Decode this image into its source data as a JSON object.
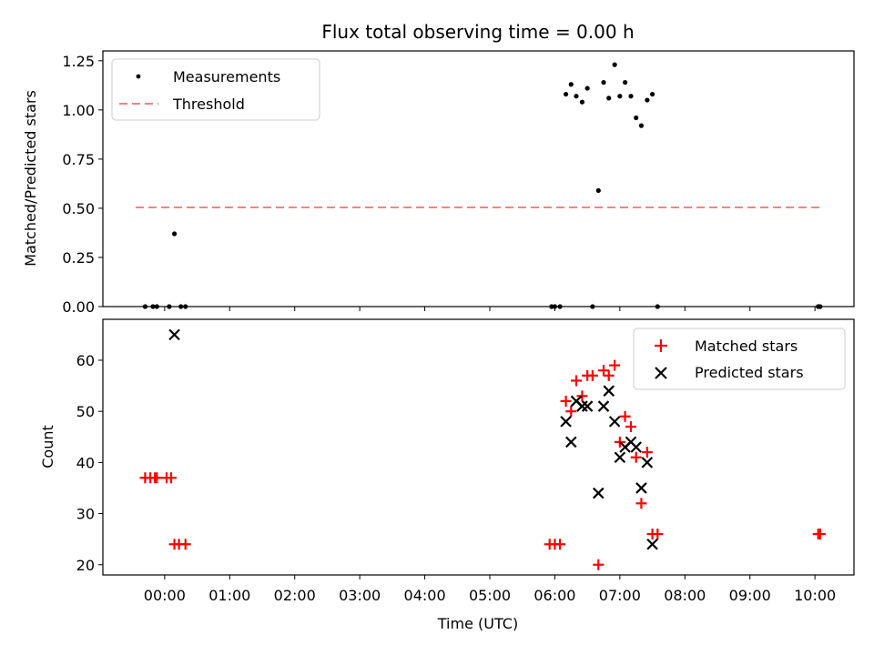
{
  "chart_data": [
    {
      "type": "scatter",
      "title": "Flux total observing time = 0.00 h",
      "xlabel": "",
      "ylabel": "Matched/Predicted stars",
      "xlim": [
        -0.95,
        10.6
      ],
      "ylim": [
        0.0,
        1.3
      ],
      "yticks": [
        0.0,
        0.25,
        0.5,
        0.75,
        1.0,
        1.25
      ],
      "ytick_labels": [
        "0.00",
        "0.25",
        "0.50",
        "0.75",
        "1.00",
        "1.25"
      ],
      "legend_position": "upper-left",
      "series": [
        {
          "name": "Measurements",
          "marker": "dot",
          "color": "#000000",
          "x": [
            -0.3,
            -0.18,
            -0.12,
            0.07,
            0.15,
            0.25,
            0.32,
            5.95,
            6.0,
            6.08,
            6.17,
            6.25,
            6.33,
            6.42,
            6.5,
            6.58,
            6.67,
            6.75,
            6.83,
            6.92,
            7.0,
            7.08,
            7.17,
            7.25,
            7.33,
            7.42,
            7.5,
            7.58,
            10.05,
            10.08
          ],
          "y": [
            0.0,
            0.0,
            0.0,
            0.0,
            0.37,
            0.0,
            0.0,
            0.0,
            0.0,
            0.0,
            1.08,
            1.13,
            1.07,
            1.04,
            1.11,
            0.0,
            0.59,
            1.14,
            1.06,
            1.23,
            1.07,
            1.14,
            1.07,
            0.96,
            0.92,
            1.05,
            1.08,
            0.0,
            0.0,
            0.0
          ]
        },
        {
          "name": "Threshold",
          "marker": "dashed-line",
          "color": "#ff8080",
          "x": [
            -0.27,
            10.1
          ],
          "y": [
            0.5,
            0.5
          ]
        }
      ]
    },
    {
      "type": "scatter",
      "title": "",
      "xlabel": "Time (UTC)",
      "ylabel": "Count",
      "xlim": [
        -0.95,
        10.6
      ],
      "ylim": [
        18,
        68
      ],
      "yticks": [
        20,
        30,
        40,
        50,
        60
      ],
      "ytick_labels": [
        "20",
        "30",
        "40",
        "50",
        "60"
      ],
      "xticks": [
        0,
        1,
        2,
        3,
        4,
        5,
        6,
        7,
        8,
        9,
        10
      ],
      "xtick_labels": [
        "00:00",
        "01:00",
        "02:00",
        "03:00",
        "04:00",
        "05:00",
        "06:00",
        "07:00",
        "08:00",
        "09:00",
        "10:00"
      ],
      "legend_position": "upper-right",
      "series": [
        {
          "name": "Matched stars",
          "marker": "plus",
          "color": "#ff0000",
          "x": [
            -0.3,
            -0.22,
            -0.15,
            -0.12,
            0.03,
            0.1,
            0.15,
            0.22,
            0.32,
            5.92,
            6.0,
            6.08,
            6.17,
            6.25,
            6.33,
            6.42,
            6.5,
            6.58,
            6.67,
            6.75,
            6.83,
            6.92,
            7.0,
            7.08,
            7.17,
            7.25,
            7.33,
            7.42,
            7.5,
            7.58,
            10.05,
            10.08
          ],
          "y": [
            37,
            37,
            37,
            37,
            37,
            37,
            24,
            24,
            24,
            24,
            24,
            24,
            52,
            50,
            56,
            53,
            57,
            57,
            20,
            58,
            57,
            59,
            44,
            49,
            47,
            41,
            32,
            42,
            26,
            26,
            26,
            26
          ]
        },
        {
          "name": "Predicted stars",
          "marker": "x",
          "color": "#000000",
          "x": [
            0.15,
            6.17,
            6.25,
            6.33,
            6.42,
            6.5,
            6.67,
            6.75,
            6.83,
            6.92,
            7.0,
            7.08,
            7.17,
            7.25,
            7.33,
            7.42,
            7.5
          ],
          "y": [
            65,
            48,
            44,
            52,
            51,
            51,
            34,
            51,
            54,
            48,
            41,
            43,
            44,
            43,
            35,
            40,
            24
          ]
        }
      ]
    }
  ]
}
